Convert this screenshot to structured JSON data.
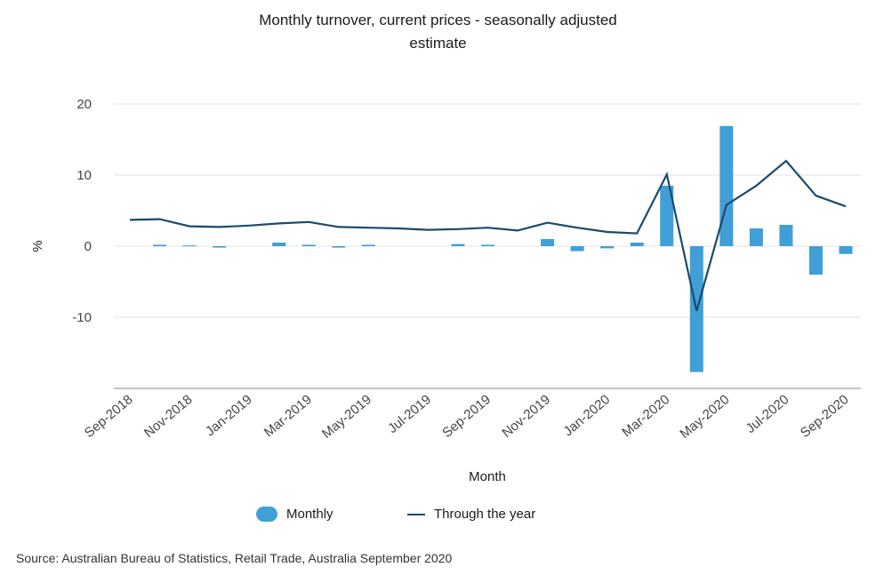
{
  "title_line1": "Monthly turnover, current prices - seasonally adjusted",
  "title_line2": "estimate",
  "source": "Source: Australian Bureau of Statistics, Retail Trade, Australia September 2020",
  "colors": {
    "monthly": "#3f9fd6",
    "through_year": "#1a4a6e",
    "grid": "#e3e3e3",
    "axis": "#888888"
  },
  "chart_data": {
    "type": "bar",
    "title": "Monthly turnover, current prices - seasonally adjusted estimate",
    "xlabel": "Month",
    "ylabel": "%",
    "ylim": [
      -20,
      20
    ],
    "yticks": [
      20,
      10,
      0,
      -10
    ],
    "grid": true,
    "legend_position": "bottom",
    "categories": [
      "Sep-2018",
      "Oct-2018",
      "Nov-2018",
      "Dec-2018",
      "Jan-2019",
      "Feb-2019",
      "Mar-2019",
      "Apr-2019",
      "May-2019",
      "Jun-2019",
      "Jul-2019",
      "Aug-2019",
      "Sep-2019",
      "Oct-2019",
      "Nov-2019",
      "Dec-2019",
      "Jan-2020",
      "Feb-2020",
      "Mar-2020",
      "Apr-2020",
      "May-2020",
      "Jun-2020",
      "Jul-2020",
      "Aug-2020",
      "Sep-2020"
    ],
    "x_tick_labels": [
      "Sep-2018",
      "Nov-2018",
      "Jan-2019",
      "Mar-2019",
      "May-2019",
      "Jul-2019",
      "Sep-2019",
      "Nov-2019",
      "Jan-2020",
      "Mar-2020",
      "May-2020",
      "Jul-2020",
      "Sep-2020"
    ],
    "series": [
      {
        "name": "Monthly",
        "kind": "bar",
        "values": [
          0.0,
          0.2,
          0.1,
          -0.2,
          0.0,
          0.5,
          0.2,
          -0.2,
          0.2,
          0.0,
          0.0,
          0.3,
          0.2,
          0.0,
          1.0,
          -0.7,
          -0.3,
          0.5,
          8.5,
          -17.7,
          16.9,
          2.5,
          3.0,
          -4.0,
          -1.1
        ]
      },
      {
        "name": "Through the year",
        "kind": "line",
        "values": [
          3.7,
          3.8,
          2.8,
          2.7,
          2.9,
          3.2,
          3.4,
          2.7,
          2.6,
          2.5,
          2.3,
          2.4,
          2.6,
          2.2,
          3.3,
          2.6,
          2.0,
          1.8,
          10.1,
          -9.1,
          5.8,
          8.5,
          12.0,
          7.1,
          5.6
        ]
      }
    ]
  }
}
